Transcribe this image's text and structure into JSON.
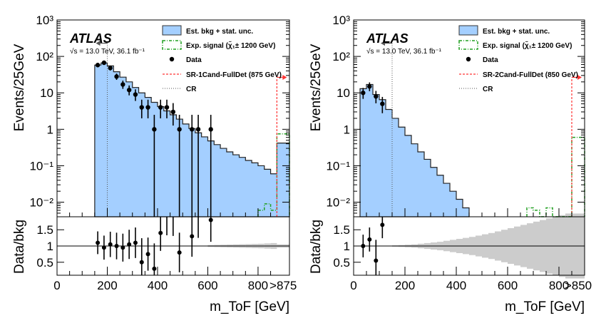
{
  "chart_data": [
    {
      "type": "histogram",
      "experiment": "ATLAS",
      "subtitle": "√s = 13.0 TeV, 36.1 fb⁻¹",
      "xlabel": "m_ToF [GeV]",
      "ylabel": "Events/25GeV",
      "ratio_ylabel": "Data/bkg",
      "x_tick_labels": [
        "0",
        "200",
        "400",
        "600",
        "800",
        ">875"
      ],
      "y_tick_labels": [
        "10⁻²",
        "10⁻¹",
        "1",
        "10",
        "10²",
        "10³"
      ],
      "ratio_tick_labels": [
        "0.5",
        "1",
        "1.5"
      ],
      "legend": {
        "bkg": "Est. bkg + stat. unc.",
        "signal": "Exp. signal (χ̃₁± 1200 GeV)",
        "data": "Data",
        "sr": "SR-1Cand-FullDet (875 GeV)",
        "cr": "CR"
      },
      "x_range": [
        0,
        925
      ],
      "overflow_bin": [
        875,
        925
      ],
      "y_range_log10": [
        -2.4,
        3
      ],
      "ratio_range": [
        0.1,
        1.9
      ],
      "sr_cut": 875,
      "cr_cut": 200,
      "bkg_hist": {
        "edges": [
          150,
          175,
          200,
          225,
          250,
          275,
          300,
          325,
          350,
          375,
          400,
          425,
          450,
          475,
          500,
          525,
          550,
          575,
          600,
          625,
          650,
          675,
          700,
          725,
          750,
          775,
          800,
          825,
          850,
          875,
          925
        ],
        "values": [
          58,
          66,
          55,
          38,
          27,
          20,
          14,
          10,
          7.5,
          5.5,
          4.2,
          3.2,
          2.5,
          1.9,
          1.4,
          1.05,
          0.8,
          0.62,
          0.48,
          0.38,
          0.3,
          0.24,
          0.2,
          0.17,
          0.14,
          0.12,
          0.1,
          0.08,
          0.06,
          0.42
        ]
      },
      "signal_hist": {
        "edges": [
          800,
          825,
          850,
          875,
          925
        ],
        "values": [
          0.006,
          0.009,
          0.006,
          0.75
        ]
      },
      "data_points": {
        "x": [
          162,
          187,
          212,
          237,
          262,
          287,
          312,
          337,
          362,
          387,
          412,
          437,
          462,
          487,
          537,
          562,
          612
        ],
        "y": [
          58,
          67,
          48,
          28,
          17,
          12,
          9,
          4,
          4,
          1,
          4,
          4,
          3,
          1,
          1,
          1,
          1
        ]
      },
      "ratio_points": {
        "x": [
          162,
          187,
          212,
          237,
          262,
          287,
          312,
          337,
          362,
          387,
          412,
          437,
          462,
          487,
          537,
          562,
          612
        ],
        "y": [
          1.1,
          0.95,
          1.05,
          1.0,
          0.95,
          1.05,
          1.1,
          0.5,
          0.75,
          0.3,
          1.4,
          1.9,
          1.9,
          0.8,
          1.3,
          1.9,
          1.8
        ]
      },
      "ratio_band": {
        "x": [
          600,
          625,
          650,
          675,
          700,
          725,
          750,
          775,
          800,
          825,
          850,
          875,
          925
        ],
        "half_width": [
          0.03,
          0.035,
          0.04,
          0.045,
          0.05,
          0.055,
          0.06,
          0.065,
          0.07,
          0.08,
          0.09,
          0.05
        ]
      },
      "colors": {
        "bkg_fill": "#a4cfff",
        "signal": "#22a022",
        "sr": "#ff3333",
        "cr": "#555555",
        "band": "#cccccc"
      }
    },
    {
      "type": "histogram",
      "experiment": "ATLAS",
      "subtitle": "√s = 13.0 TeV, 36.1 fb⁻¹",
      "xlabel": "m_ToF [GeV]",
      "ylabel": "Events/25GeV",
      "ratio_ylabel": "Data/bkg",
      "x_tick_labels": [
        "0",
        "200",
        "400",
        "600",
        "800",
        ">850"
      ],
      "y_tick_labels": [
        "10⁻²",
        "10⁻¹",
        "1",
        "10",
        "10²",
        "10³"
      ],
      "ratio_tick_labels": [
        "0.5",
        "1",
        "1.5"
      ],
      "legend": {
        "bkg": "Est. bkg + stat. unc.",
        "signal": "Exp. signal (χ̃₁± 1200 GeV)",
        "data": "Data",
        "sr": "SR-2Cand-FullDet (850 GeV)",
        "cr": "CR"
      },
      "x_range": [
        0,
        900
      ],
      "overflow_bin": [
        850,
        900
      ],
      "y_range_log10": [
        -2.4,
        3
      ],
      "ratio_range": [
        0.1,
        1.9
      ],
      "sr_cut": 850,
      "cr_cut": 150,
      "bkg_hist": {
        "edges": [
          25,
          50,
          75,
          100,
          125,
          150,
          175,
          200,
          225,
          250,
          275,
          300,
          325,
          350,
          375,
          400,
          425,
          450
        ],
        "values": [
          13,
          17,
          9,
          6.5,
          3.5,
          2.0,
          1.15,
          0.68,
          0.4,
          0.24,
          0.15,
          0.09,
          0.055,
          0.033,
          0.02,
          0.012,
          0.007
        ]
      },
      "signal_hist": {
        "edges": [
          675,
          700,
          725,
          750,
          775,
          800,
          850,
          900
        ],
        "values": [
          0.007,
          0.006,
          0.004,
          0.007,
          0.004,
          0.004,
          0.6
        ]
      },
      "data_points": {
        "x": [
          37,
          62,
          87,
          112
        ],
        "y": [
          10,
          15,
          8,
          5
        ]
      },
      "ratio_points": {
        "x": [
          37,
          62,
          87,
          112
        ],
        "y": [
          1.0,
          1.2,
          0.55,
          1.65
        ]
      },
      "ratio_band": {
        "x": [
          150,
          175,
          200,
          225,
          250,
          275,
          300,
          325,
          350,
          375,
          400,
          425,
          450,
          475,
          500,
          525,
          550,
          575,
          600,
          625,
          650,
          675,
          700,
          725,
          750,
          775,
          800,
          825,
          850,
          900
        ],
        "half_width": [
          0.02,
          0.03,
          0.04,
          0.05,
          0.07,
          0.09,
          0.11,
          0.13,
          0.16,
          0.19,
          0.22,
          0.25,
          0.28,
          0.32,
          0.36,
          0.4,
          0.45,
          0.5,
          0.55,
          0.6,
          0.65,
          0.7,
          0.75,
          0.8,
          0.85,
          0.9,
          0.95,
          1.0,
          1.0
        ]
      },
      "colors": {
        "bkg_fill": "#a4cfff",
        "signal": "#22a022",
        "sr": "#ff3333",
        "cr": "#555555",
        "band": "#cccccc"
      }
    }
  ]
}
